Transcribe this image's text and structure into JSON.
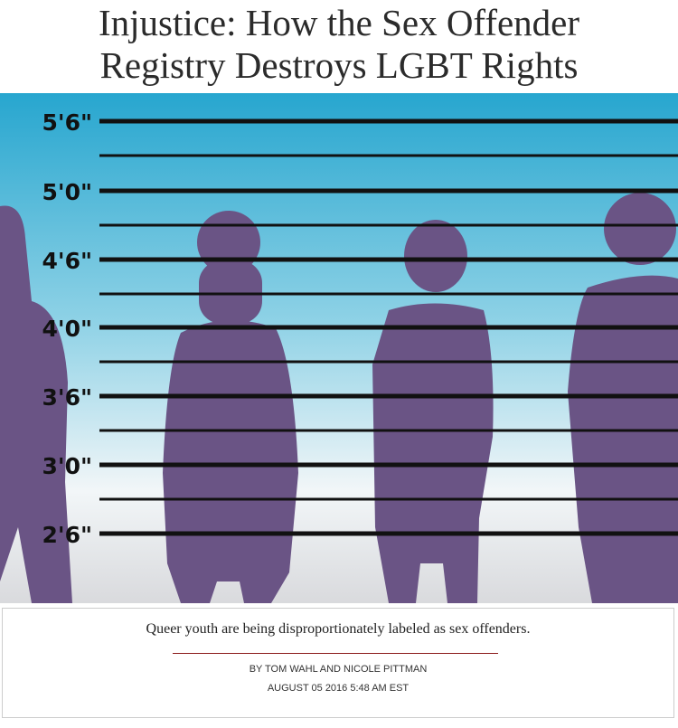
{
  "header": {
    "title": "Injustice: How the Sex Offender Registry Destroys LGBT Rights"
  },
  "image": {
    "height_labels": [
      "5'6\"",
      "5'0\"",
      "4'6\"",
      "4'0\"",
      "3'6\"",
      "3'0\"",
      "2'6\""
    ]
  },
  "caption": {
    "subtitle": "Queer youth are being disproportionately labeled as sex offenders.",
    "byline": "BY TOM WAHL AND NICOLE PITTMAN",
    "date": "AUGUST 05 2016 5:48 AM EST"
  }
}
